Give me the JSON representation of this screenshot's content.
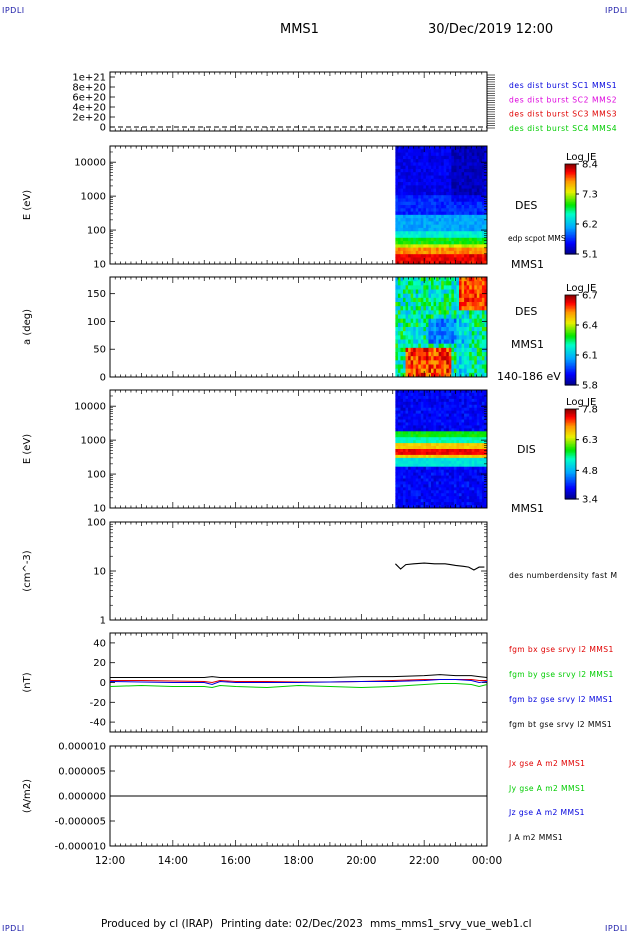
{
  "corners": {
    "tl": "IPDLI",
    "tr": "IPDLI",
    "bl": "IPDLI",
    "br": "IPDLI"
  },
  "header": {
    "spacecraft": "MMS1",
    "date": "30/Dec/2019 12:00"
  },
  "footer": {
    "produced": "Produced by cl (IRAP)",
    "printing": "Printing date: 02/Dec/2023",
    "file": "mms_mms1_srvy_vue_web1.cl"
  },
  "time_axis": {
    "ticks": [
      "12:00",
      "14:00",
      "16:00",
      "18:00",
      "20:00",
      "22:00",
      "00:00"
    ]
  },
  "colors": {
    "red": "#e00000",
    "green": "#00cc00",
    "blue": "#0000dd",
    "magenta": "#dd00dd",
    "black": "#000000"
  },
  "chart_data": [
    {
      "type": "line",
      "panel": "burst",
      "ylabel": "",
      "yticks": [
        "1e+21",
        "8e+20",
        "6e+20",
        "4e+20",
        "2e+20",
        "0"
      ],
      "ylim": [
        0,
        1.1e+21
      ],
      "series": [
        {
          "name": "des dist burst SC1 MMS1",
          "color": "#0000dd",
          "values": [
            0
          ]
        },
        {
          "name": "des dist burst SC2 MMS2",
          "color": "#dd00dd",
          "values": [
            0
          ]
        },
        {
          "name": "des dist burst SC3 MMS3",
          "color": "#e00000",
          "values": [
            0
          ]
        },
        {
          "name": "des dist burst SC4 MMS4",
          "color": "#00cc00",
          "values": [
            0
          ]
        }
      ]
    },
    {
      "type": "heatmap",
      "panel": "des-energy",
      "ylabel": "E (eV)",
      "yticks": [
        "10000",
        "1000",
        "100",
        "10"
      ],
      "ylim": [
        10,
        30000
      ],
      "yscale": "log",
      "data_start": "21:05",
      "labels": [
        "DES",
        "edp scpot MMS1",
        "MMS1"
      ],
      "colorbar": {
        "title": "Log JE",
        "ticks": [
          "8.4",
          "7.3",
          "6.2",
          "5.1"
        ],
        "range": [
          5.1,
          8.4
        ]
      }
    },
    {
      "type": "heatmap",
      "panel": "des-pitch",
      "ylabel": "a (deg)",
      "yticks": [
        "150",
        "100",
        "50",
        "0"
      ],
      "ylim": [
        0,
        180
      ],
      "data_start": "21:05",
      "labels": [
        "DES",
        "MMS1",
        "140-186 eV"
      ],
      "colorbar": {
        "title": "Log JE",
        "ticks": [
          "6.7",
          "6.4",
          "6.1",
          "5.8"
        ],
        "range": [
          5.8,
          6.7
        ]
      }
    },
    {
      "type": "heatmap",
      "panel": "dis-energy",
      "ylabel": "E (eV)",
      "yticks": [
        "10000",
        "1000",
        "100",
        "10"
      ],
      "ylim": [
        10,
        30000
      ],
      "yscale": "log",
      "data_start": "21:05",
      "labels": [
        "DIS",
        "MMS1"
      ],
      "colorbar": {
        "title": "Log JE",
        "ticks": [
          "7.8",
          "6.3",
          "4.8",
          "3.4"
        ],
        "range": [
          3.4,
          7.8
        ]
      }
    },
    {
      "type": "line",
      "panel": "density",
      "ylabel": "(cm^-3)",
      "yticks": [
        "100",
        "10",
        "1"
      ],
      "ylim": [
        1,
        100
      ],
      "yscale": "log",
      "x": [
        "21:05",
        "21:15",
        "21:25",
        "21:40",
        "22:00",
        "22:20",
        "22:40",
        "22:50",
        "23:00",
        "23:15",
        "23:25",
        "23:35",
        "23:45",
        "23:55"
      ],
      "series": [
        {
          "name": "des numberdensity fast M",
          "color": "#000000",
          "values": [
            14,
            11,
            13.5,
            14,
            14.5,
            14,
            14,
            13.5,
            13,
            12.5,
            12,
            10.5,
            12,
            12
          ]
        }
      ]
    },
    {
      "type": "line",
      "panel": "fgm",
      "ylabel": "(nT)",
      "yticks": [
        "40",
        "20",
        "0",
        "-20",
        "-40"
      ],
      "ylim": [
        -50,
        50
      ],
      "x": [
        "12:00",
        "13:00",
        "14:00",
        "15:00",
        "15:15",
        "15:30",
        "16:00",
        "17:00",
        "18:00",
        "19:00",
        "20:00",
        "21:00",
        "22:00",
        "22:30",
        "23:00",
        "23:30",
        "23:45",
        "00:00"
      ],
      "series": [
        {
          "name": "fgm bx gse srvy l2 MMS1",
          "color": "#e00000",
          "values": [
            2,
            2,
            1.5,
            1,
            0,
            2,
            1,
            1,
            0.5,
            0.5,
            1,
            2,
            3,
            3,
            3,
            3,
            2,
            2
          ]
        },
        {
          "name": "fgm by gse srvy l2 MMS1",
          "color": "#00cc00",
          "values": [
            -4,
            -3,
            -4,
            -4,
            -5,
            -3,
            -4,
            -5,
            -3,
            -4,
            -5,
            -4,
            -2,
            -1,
            -1,
            -2,
            -4,
            -2
          ]
        },
        {
          "name": "fgm bz gse srvy l2 MMS1",
          "color": "#0000dd",
          "values": [
            1,
            0.5,
            0,
            0,
            -2,
            1,
            0,
            0,
            0,
            0.5,
            1,
            1,
            2,
            3,
            3,
            2,
            0,
            1
          ]
        },
        {
          "name": "fgm bt gse srvy l2 MMS1",
          "color": "#000000",
          "values": [
            5,
            5,
            5,
            5,
            6,
            5,
            5,
            5,
            5,
            5,
            6,
            6,
            7,
            8,
            7,
            7,
            6,
            5
          ]
        }
      ]
    },
    {
      "type": "line",
      "panel": "current",
      "ylabel": "(A/m2)",
      "yticks": [
        "0.000010",
        "0.000005",
        "0.000000",
        "-0.000005",
        "-0.000010"
      ],
      "ylim": [
        -1e-05,
        1e-05
      ],
      "x": [
        "12:00",
        "00:00"
      ],
      "series": [
        {
          "name": "Jx gse A m2 MMS1",
          "color": "#e00000",
          "values": [
            0,
            0
          ]
        },
        {
          "name": "Jy gse A m2 MMS1",
          "color": "#00cc00",
          "values": [
            0,
            0
          ]
        },
        {
          "name": "Jz gse A m2 MMS1",
          "color": "#0000dd",
          "values": [
            0,
            0
          ]
        },
        {
          "name": "J A m2 MMS1",
          "color": "#000000",
          "values": [
            0,
            0
          ]
        }
      ]
    }
  ]
}
